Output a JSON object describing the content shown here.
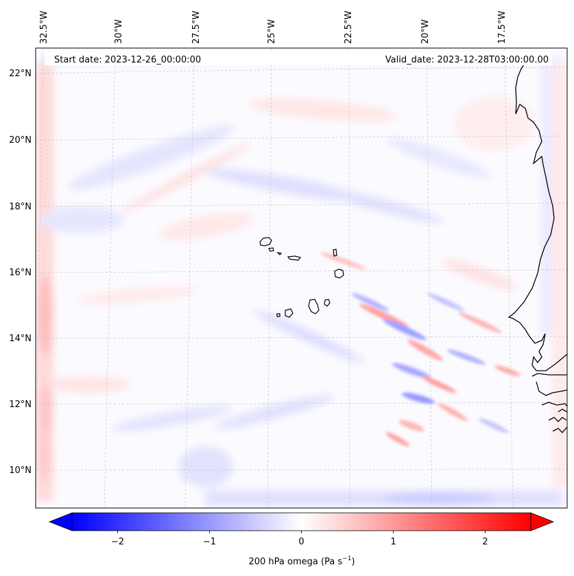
{
  "header": {
    "start_date": "Start date: 2023-12-26_00:00:00",
    "valid_date": "Valid_date: 2023-12-28T03:00:00.00"
  },
  "longitude_labels": [
    "32.5°W",
    "30°W",
    "27.5°W",
    "25°W",
    "22.5°W",
    "20°W",
    "17.5°W"
  ],
  "latitude_labels": [
    "22°N",
    "20°N",
    "18°N",
    "16°N",
    "14°N",
    "12°N",
    "10°N"
  ],
  "colorbar": {
    "title": "200 hPa omega (Pa s",
    "title_superscript": "−1",
    "title_close": ")",
    "tick_labels": [
      "−2",
      "−1",
      "0",
      "1",
      "2"
    ],
    "tick_values": [
      -2,
      -1,
      0,
      1,
      2
    ],
    "range": [
      -2.6,
      2.6
    ],
    "colormap": "bwr",
    "negative_color": "#0000ff",
    "zero_color": "#ffffff",
    "positive_color": "#ff0000"
  },
  "map": {
    "gridline_color": "#bbbbbb",
    "coastline_color": "#000000",
    "region": "Cape Verde and West African coast"
  }
}
